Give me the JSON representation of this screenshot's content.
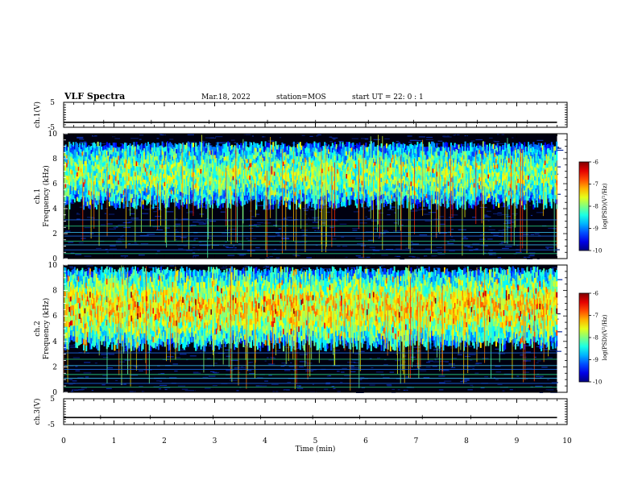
{
  "header": {
    "title": "VLF Spectra",
    "date": "Mar.18, 2022",
    "station": "station=MOS",
    "start": "start  UT =   22: 0  : 1"
  },
  "chart_data": [
    {
      "type": "line",
      "panel": "ch1-waveform",
      "ylabel": "ch.1(V)",
      "ylim": [
        -5,
        5
      ],
      "yticks": [
        {
          "v": 5,
          "t": "5"
        },
        {
          "v": -5,
          "t": "-5"
        }
      ],
      "xlim": [
        0,
        10
      ],
      "series": [
        {
          "x": [
            0,
            9.8
          ],
          "y": [
            -3,
            -3
          ]
        }
      ]
    },
    {
      "type": "heatmap",
      "panel": "ch1-spectrogram",
      "ylabel": "ch.1\nFrequency (kHz)",
      "ylim": [
        0,
        10
      ],
      "yticks": [
        "0",
        "2",
        "4",
        "6",
        "8",
        "10"
      ],
      "xlim": [
        0,
        9.8
      ],
      "band_khz": [
        4.2,
        9.4
      ],
      "colorbar": {
        "label": "log(PSD)(V²/Hz)",
        "range": [
          -10,
          -6
        ],
        "ticks": [
          "-6",
          "-7",
          "-8",
          "-9",
          "-10"
        ]
      }
    },
    {
      "type": "heatmap",
      "panel": "ch2-spectrogram",
      "ylabel": "ch.2\nFrequency (kHz)",
      "ylim": [
        0,
        10
      ],
      "yticks": [
        "0",
        "2",
        "4",
        "6",
        "8",
        "10"
      ],
      "xlim": [
        0,
        9.8
      ],
      "band_khz": [
        3.5,
        9.9
      ],
      "colorbar": {
        "label": "log(PSD)(V²/Hz)",
        "range": [
          -10,
          -6
        ],
        "ticks": [
          "-6",
          "-7",
          "-8",
          "-9",
          "-10"
        ]
      }
    },
    {
      "type": "line",
      "panel": "ch3-waveform",
      "ylabel": "ch.3(V)",
      "ylim": [
        -5,
        5
      ],
      "yticks": [
        {
          "v": 5,
          "t": "5"
        },
        {
          "v": -5,
          "t": "-5"
        }
      ],
      "xlim": [
        0,
        10
      ],
      "series": [
        {
          "x": [
            0,
            9.8
          ],
          "y": [
            -2.3,
            -2.3
          ]
        }
      ]
    }
  ],
  "xaxis": {
    "label": "Time (min)",
    "ticks": [
      "0",
      "1",
      "2",
      "3",
      "4",
      "5",
      "6",
      "7",
      "8",
      "9",
      "10"
    ],
    "range": [
      0,
      10
    ]
  }
}
